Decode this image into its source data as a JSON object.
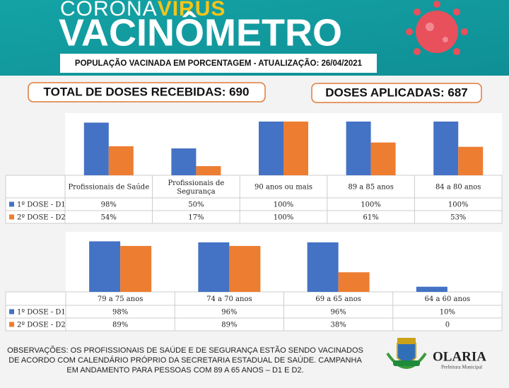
{
  "header": {
    "brand": "CORONA",
    "brand_accent": "VIRUS",
    "title": "VACINÔMETRO",
    "subtitle": "POPULAÇÃO VACINADA EM PORCENTAGEM - ATUALIZAÇÃO: 26/04/2021"
  },
  "totals": {
    "received": "TOTAL DE DOSES RECEBIDAS: 690",
    "applied": "DOSES APLICADAS: 687"
  },
  "chart_data": [
    {
      "type": "bar",
      "categories": [
        "Profissionais de Saúde",
        "Profissionais de Segurança",
        "90 anos ou mais",
        "89 a 85 anos",
        "84 a 80 anos"
      ],
      "ylim": [
        0,
        100
      ],
      "series": [
        {
          "name": "1º DOSE - D1",
          "color": "#4472c4",
          "values": [
            98,
            50,
            100,
            100,
            100
          ],
          "value_labels": [
            "98%",
            "50%",
            "100%",
            "100%",
            "100%"
          ]
        },
        {
          "name": "2º DOSE - D2",
          "color": "#ed7d31",
          "values": [
            54,
            17,
            100,
            61,
            53
          ],
          "value_labels": [
            "54%",
            "17%",
            "100%",
            "61%",
            "53%"
          ]
        }
      ]
    },
    {
      "type": "bar",
      "categories": [
        "79 a 75 anos",
        "74 a 70 anos",
        "69 a 65 anos",
        "64 a 60 anos"
      ],
      "ylim": [
        0,
        100
      ],
      "series": [
        {
          "name": "1º DOSE - D1",
          "color": "#4472c4",
          "values": [
            98,
            96,
            96,
            10
          ],
          "value_labels": [
            "98%",
            "96%",
            "96%",
            "10%"
          ]
        },
        {
          "name": "2º DOSE - D2",
          "color": "#ed7d31",
          "values": [
            89,
            89,
            38,
            0
          ],
          "value_labels": [
            "89%",
            "89%",
            "38%",
            "0"
          ]
        }
      ]
    }
  ],
  "footer": {
    "note": [
      "OBSERVAÇÕES: OS PROFISSIONAIS DE SAÚDE E DE SEGURANÇA ESTÃO SENDO VACINADOS",
      "DE ACORDO COM CALENDÁRIO PRÓPRIO DA SECRETARIA ESTADUAL DE SAÚDE. CAMPANHA",
      "EM ANDAMENTO PARA PESSOAS COM 89 A 65 ANOS – D1 E D2."
    ],
    "logo_name": "OLARIA",
    "logo_sub": "Prefeitura Municipal"
  }
}
